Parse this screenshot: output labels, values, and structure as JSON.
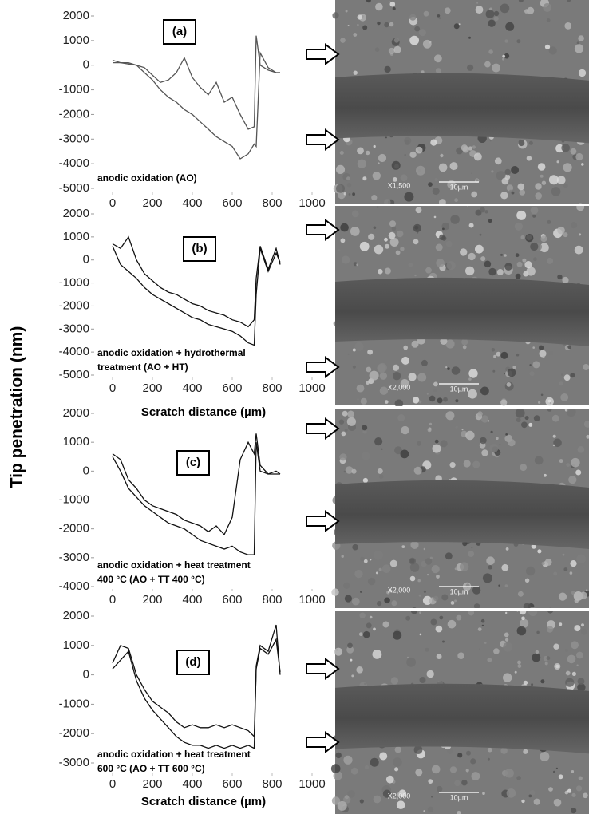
{
  "shared_ylabel": "Tip penetration (nm)",
  "chart_data": [
    {
      "type": "line",
      "panel_label": "(a)",
      "annotation": [
        "anodic oxidation (AO)"
      ],
      "x": [
        0,
        40,
        80,
        120,
        160,
        200,
        240,
        280,
        320,
        360,
        400,
        440,
        480,
        520,
        560,
        600,
        640,
        680,
        710,
        720,
        740,
        780,
        820,
        840
      ],
      "series": [
        {
          "color": "#555555",
          "values": [
            100,
            100,
            50,
            0,
            -300,
            -600,
            -1000,
            -1300,
            -1500,
            -1800,
            -2000,
            -2300,
            -2600,
            -2900,
            -3100,
            -3300,
            -3800,
            -3600,
            -3200,
            -3300,
            500,
            -100,
            -300,
            -300
          ]
        },
        {
          "color": "#555555",
          "values": [
            200,
            100,
            100,
            0,
            -100,
            -400,
            -700,
            -600,
            -300,
            300,
            -500,
            -900,
            -1200,
            -700,
            -1500,
            -1300,
            -2000,
            -2600,
            -2500,
            1200,
            0,
            -200,
            -300,
            -300
          ]
        }
      ],
      "xlim": [
        0,
        1000
      ],
      "xticks": [
        0,
        200,
        400,
        600,
        800,
        1000
      ],
      "ylim": [
        -5000,
        2000
      ],
      "yticks": [
        2000,
        1000,
        0,
        -1000,
        -2000,
        -3000,
        -4000,
        -5000
      ]
    },
    {
      "type": "line",
      "panel_label": "(b)",
      "annotation": [
        "anodic oxidation + hydrothermal",
        "treatment (AO + HT)"
      ],
      "xlabel": "Scratch distance (µm)",
      "x": [
        0,
        40,
        80,
        120,
        160,
        200,
        240,
        280,
        320,
        360,
        400,
        440,
        480,
        520,
        560,
        600,
        640,
        680,
        710,
        720,
        740,
        780,
        820,
        840
      ],
      "series": [
        {
          "color": "#111111",
          "values": [
            600,
            -200,
            -500,
            -800,
            -1200,
            -1500,
            -1700,
            -1900,
            -2100,
            -2300,
            -2500,
            -2600,
            -2800,
            -2900,
            -3000,
            -3100,
            -3300,
            -3600,
            -3700,
            -1500,
            500,
            -500,
            300,
            -100
          ]
        },
        {
          "color": "#111111",
          "values": [
            700,
            500,
            1000,
            0,
            -600,
            -900,
            -1200,
            -1400,
            -1500,
            -1700,
            -1900,
            -2000,
            -2200,
            -2300,
            -2400,
            -2600,
            -2700,
            -2900,
            -2600,
            -800,
            600,
            -400,
            500,
            -200
          ]
        }
      ],
      "xlim": [
        0,
        1000
      ],
      "xticks": [
        0,
        200,
        400,
        600,
        800,
        1000
      ],
      "ylim": [
        -5000,
        2000
      ],
      "yticks": [
        2000,
        1000,
        0,
        -1000,
        -2000,
        -3000,
        -4000,
        -5000
      ]
    },
    {
      "type": "line",
      "panel_label": "(c)",
      "annotation": [
        "anodic oxidation + heat treatment",
        "400 °C (AO + TT 400 °C)"
      ],
      "x": [
        0,
        40,
        80,
        120,
        160,
        200,
        240,
        280,
        320,
        360,
        400,
        440,
        480,
        520,
        560,
        600,
        640,
        680,
        710,
        720,
        740,
        780,
        820,
        840
      ],
      "series": [
        {
          "color": "#111111",
          "values": [
            500,
            0,
            -600,
            -900,
            -1200,
            -1400,
            -1600,
            -1800,
            -1900,
            -2000,
            -2200,
            -2400,
            -2500,
            -2600,
            -2700,
            -2600,
            -2800,
            -2900,
            -2900,
            1000,
            0,
            -100,
            -100,
            -100
          ]
        },
        {
          "color": "#111111",
          "values": [
            600,
            400,
            -300,
            -600,
            -1000,
            -1200,
            -1300,
            -1400,
            -1500,
            -1700,
            -1800,
            -1900,
            -2100,
            -1900,
            -2200,
            -1600,
            400,
            1000,
            600,
            1300,
            200,
            -100,
            0,
            -100
          ]
        }
      ],
      "xlim": [
        0,
        1000
      ],
      "xticks": [
        0,
        200,
        400,
        600,
        800,
        1000
      ],
      "ylim": [
        -4000,
        2000
      ],
      "yticks": [
        2000,
        1000,
        0,
        -1000,
        -2000,
        -3000,
        -4000
      ]
    },
    {
      "type": "line",
      "panel_label": "(d)",
      "annotation": [
        "anodic oxidation + heat treatment",
        "600 °C (AO + TT 600 °C)"
      ],
      "xlabel": "Scratch distance (µm)",
      "x": [
        0,
        40,
        80,
        120,
        160,
        200,
        240,
        280,
        320,
        360,
        400,
        440,
        480,
        520,
        560,
        600,
        640,
        680,
        710,
        720,
        740,
        780,
        820,
        840
      ],
      "series": [
        {
          "color": "#111111",
          "values": [
            200,
            500,
            800,
            -200,
            -800,
            -1200,
            -1500,
            -1800,
            -2100,
            -2300,
            -2400,
            -2400,
            -2500,
            -2400,
            -2500,
            -2400,
            -2500,
            -2400,
            -2500,
            300,
            1000,
            800,
            1700,
            0
          ]
        },
        {
          "color": "#111111",
          "values": [
            400,
            1000,
            900,
            0,
            -500,
            -900,
            -1100,
            -1300,
            -1600,
            -1800,
            -1700,
            -1800,
            -1800,
            -1700,
            -1800,
            -1700,
            -1800,
            -1900,
            -2100,
            200,
            900,
            700,
            1200,
            100
          ]
        }
      ],
      "xlim": [
        0,
        1000
      ],
      "xticks": [
        0,
        200,
        400,
        600,
        800,
        1000
      ],
      "ylim": [
        -3000,
        2000
      ],
      "yticks": [
        2000,
        1000,
        0,
        -1000,
        -2000,
        -3000
      ]
    }
  ],
  "images": [
    {
      "magnification": "X1,500",
      "scale": "10µm"
    },
    {
      "magnification": "X2,000",
      "scale": "10µm"
    },
    {
      "magnification": "X2,000",
      "scale": "10µm"
    },
    {
      "magnification": "X2,000",
      "scale": "10µm"
    }
  ]
}
